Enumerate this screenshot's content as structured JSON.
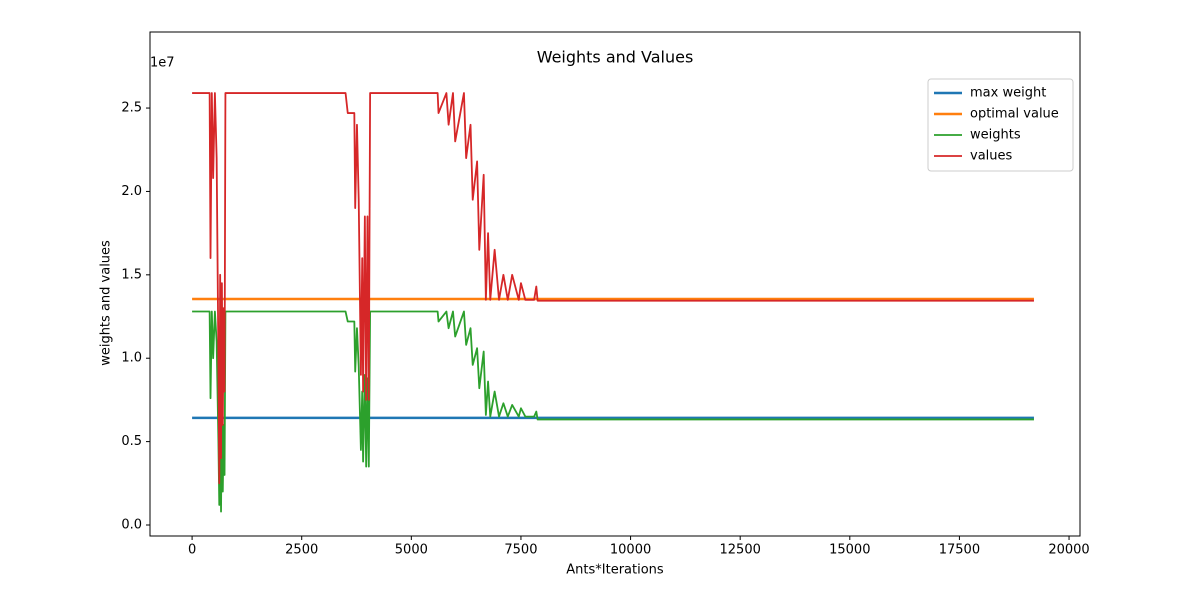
{
  "chart_data": {
    "type": "line",
    "title": "Weights and Values",
    "x_label": "Ants*Iterations",
    "y_label": "weights and values",
    "y_offset_label": "1e7",
    "x": [
      0,
      400,
      420,
      450,
      480,
      520,
      560,
      600,
      620,
      640,
      660,
      680,
      700,
      720,
      740,
      760,
      3500,
      3550,
      3700,
      3720,
      3760,
      3800,
      3850,
      3880,
      3900,
      3940,
      3970,
      4000,
      4030,
      4060,
      5600,
      5620,
      5800,
      5850,
      5950,
      6000,
      6200,
      6250,
      6350,
      6400,
      6500,
      6550,
      6650,
      6700,
      6750,
      6800,
      6900,
      7000,
      7100,
      7200,
      7300,
      7450,
      7500,
      7600,
      7800,
      7850,
      7880,
      19200
    ],
    "series": [
      {
        "name": "max weight",
        "color": "#1f77b4",
        "width": 2.5,
        "values": [
          6420000,
          6420000,
          6420000,
          6420000,
          6420000,
          6420000,
          6420000,
          6420000,
          6420000,
          6420000,
          6420000,
          6420000,
          6420000,
          6420000,
          6420000,
          6420000,
          6420000,
          6420000,
          6420000,
          6420000,
          6420000,
          6420000,
          6420000,
          6420000,
          6420000,
          6420000,
          6420000,
          6420000,
          6420000,
          6420000,
          6420000,
          6420000,
          6420000,
          6420000,
          6420000,
          6420000,
          6420000,
          6420000,
          6420000,
          6420000,
          6420000,
          6420000,
          6420000,
          6420000,
          6420000,
          6420000,
          6420000,
          6420000,
          6420000,
          6420000,
          6420000,
          6420000,
          6420000,
          6420000,
          6420000,
          6420000,
          6420000,
          6420000
        ]
      },
      {
        "name": "optimal value",
        "color": "#ff7f0e",
        "width": 2.5,
        "values": [
          13550000,
          13550000,
          13550000,
          13550000,
          13550000,
          13550000,
          13550000,
          13550000,
          13550000,
          13550000,
          13550000,
          13550000,
          13550000,
          13550000,
          13550000,
          13550000,
          13550000,
          13550000,
          13550000,
          13550000,
          13550000,
          13550000,
          13550000,
          13550000,
          13550000,
          13550000,
          13550000,
          13550000,
          13550000,
          13550000,
          13550000,
          13550000,
          13550000,
          13550000,
          13550000,
          13550000,
          13550000,
          13550000,
          13550000,
          13550000,
          13550000,
          13550000,
          13550000,
          13550000,
          13550000,
          13550000,
          13550000,
          13550000,
          13550000,
          13550000,
          13550000,
          13550000,
          13550000,
          13550000,
          13550000,
          13550000,
          13550000,
          13550000
        ]
      },
      {
        "name": "weights",
        "color": "#2ca02c",
        "width": 1.8,
        "values": [
          12800000,
          12800000,
          7600000,
          12800000,
          10000000,
          12800000,
          11000000,
          5000000,
          1200000,
          7000000,
          800000,
          7500000,
          2000000,
          6000000,
          3000000,
          12800000,
          12800000,
          12200000,
          12200000,
          9200000,
          11800000,
          9500000,
          4500000,
          8000000,
          3800000,
          9000000,
          3500000,
          8800000,
          3500000,
          12800000,
          12800000,
          12200000,
          12800000,
          11800000,
          12800000,
          11300000,
          12800000,
          10800000,
          11800000,
          9600000,
          10600000,
          8200000,
          10400000,
          6600000,
          8600000,
          6500000,
          8000000,
          6500000,
          7300000,
          6500000,
          7200000,
          6500000,
          7000000,
          6500000,
          6500000,
          6800000,
          6330000,
          6330000
        ]
      },
      {
        "name": "values",
        "color": "#d62728",
        "width": 1.8,
        "values": [
          25900000,
          25900000,
          16000000,
          25900000,
          20800000,
          25900000,
          22000000,
          10000000,
          2500000,
          15000000,
          4000000,
          14500000,
          6000000,
          13000000,
          8000000,
          25900000,
          25900000,
          24700000,
          24700000,
          19000000,
          24000000,
          19500000,
          9000000,
          16000000,
          8000000,
          18500000,
          7500000,
          18500000,
          7500000,
          25900000,
          25900000,
          24700000,
          25900000,
          24000000,
          25900000,
          23000000,
          25900000,
          22000000,
          24000000,
          19500000,
          21800000,
          16500000,
          21000000,
          13500000,
          17500000,
          13500000,
          16500000,
          13500000,
          15000000,
          13500000,
          15000000,
          13500000,
          14500000,
          13500000,
          13500000,
          14300000,
          13450000,
          13450000
        ]
      }
    ],
    "xlim": [
      -960,
      20250
    ],
    "ylim": [
      -660000,
      29560000
    ],
    "xticks": [
      0,
      2500,
      5000,
      7500,
      10000,
      12500,
      15000,
      17500,
      20000
    ],
    "yticks": [
      {
        "value": 0,
        "label": "0.0"
      },
      {
        "value": 5000000,
        "label": "0.5"
      },
      {
        "value": 10000000,
        "label": "1.0"
      },
      {
        "value": 15000000,
        "label": "1.5"
      },
      {
        "value": 20000000,
        "label": "2.0"
      },
      {
        "value": 25000000,
        "label": "2.5"
      }
    ],
    "legend": "upper right"
  }
}
